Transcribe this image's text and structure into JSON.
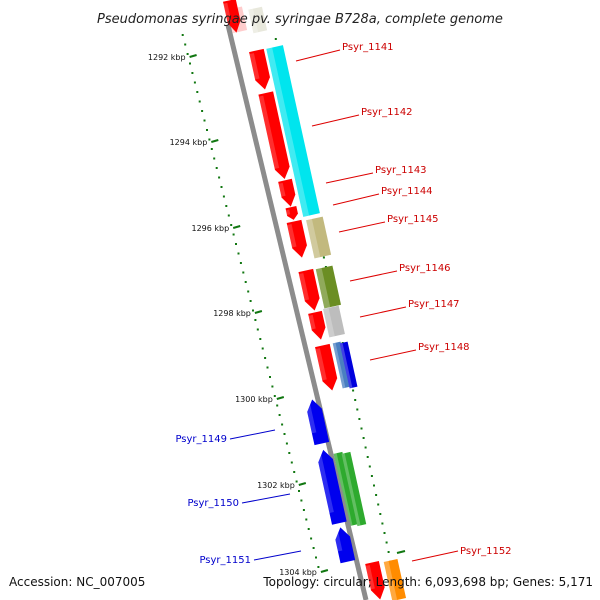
{
  "title": "Pseudomonas syringae pv. syringae B728a, complete genome",
  "footer": {
    "accession": "Accession: NC_007005",
    "topology": "Topology: circular; Length: 6,093,698 bp; Genes: 5,171"
  },
  "scale": {
    "ticks": [
      {
        "label": "1292 kbp"
      },
      {
        "label": "1294 kbp"
      },
      {
        "label": "1296 kbp"
      },
      {
        "label": "1298 kbp"
      },
      {
        "label": "1300 kbp"
      },
      {
        "label": "1302 kbp"
      },
      {
        "label": "1304 kbp"
      }
    ]
  },
  "colors": {
    "forward_label": "#cc0000",
    "reverse_label": "#0000cc",
    "backbone": "#8c8c8c",
    "scale_dots": "#117711",
    "leader_forward": "#dd0000",
    "leader_reverse": "#0000cc"
  },
  "genes": [
    {
      "name": "Psyr_1141",
      "strand": "forward",
      "color": "#ff0000"
    },
    {
      "name": "Psyr_1142",
      "strand": "forward",
      "color": "#ff0000"
    },
    {
      "name": "Psyr_1143",
      "strand": "forward",
      "color": "#ff0000"
    },
    {
      "name": "Psyr_1144",
      "strand": "forward",
      "color": "#ff0000"
    },
    {
      "name": "Psyr_1145",
      "strand": "forward",
      "color": "#ff0000"
    },
    {
      "name": "Psyr_1146",
      "strand": "forward",
      "color": "#ff0000"
    },
    {
      "name": "Psyr_1147",
      "strand": "forward",
      "color": "#ff0000"
    },
    {
      "name": "Psyr_1148",
      "strand": "forward",
      "color": "#ff0000"
    },
    {
      "name": "Psyr_1149",
      "strand": "reverse",
      "color": "#0000ee"
    },
    {
      "name": "Psyr_1150",
      "strand": "reverse",
      "color": "#0000ee"
    },
    {
      "name": "Psyr_1151",
      "strand": "reverse",
      "color": "#0000ee"
    },
    {
      "name": "Psyr_1152",
      "strand": "forward",
      "color": "#ff0000"
    }
  ],
  "features": [
    {
      "color": "#00e5ee"
    },
    {
      "color": "#c2b97e"
    },
    {
      "color": "#6b8e23"
    },
    {
      "color": "#bdbdbd"
    },
    {
      "color": "#4a7fc1"
    },
    {
      "color": "#0000dd"
    },
    {
      "color": "#2eaa2e"
    },
    {
      "color": "#ff8c00"
    },
    {
      "color": "#ffcccc"
    },
    {
      "color": "#e8e8dc"
    }
  ]
}
